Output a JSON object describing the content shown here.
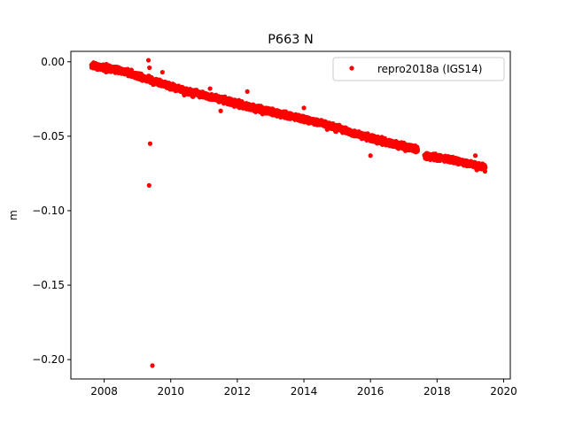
{
  "chart_data": {
    "type": "scatter",
    "title": "P663 N",
    "xlabel": "",
    "ylabel": "m",
    "xlim": [
      2007.0,
      2020.2
    ],
    "ylim": [
      -0.213,
      0.007
    ],
    "x_ticks": [
      2008,
      2010,
      2012,
      2014,
      2016,
      2018,
      2020
    ],
    "x_tick_labels": [
      "2008",
      "2010",
      "2012",
      "2014",
      "2016",
      "2018",
      "2020"
    ],
    "y_ticks": [
      0.0,
      -0.05,
      -0.1,
      -0.15,
      -0.2
    ],
    "y_tick_labels": [
      "0.00",
      "−0.05",
      "−0.10",
      "−0.15",
      "−0.20"
    ],
    "grid": false,
    "legend": "top-right",
    "series": [
      {
        "name": "repro2018a (IGS14)",
        "color": "#ff0000",
        "marker": "circle",
        "x_range": [
          2007.62,
          2019.45
        ],
        "gap": [
          2017.42,
          2017.62
        ],
        "trend": [
          [
            2007.62,
            -0.0025
          ],
          [
            2008.5,
            -0.006
          ],
          [
            2009.5,
            -0.013
          ],
          [
            2010.5,
            -0.02
          ],
          [
            2011.5,
            -0.025
          ],
          [
            2012.5,
            -0.031
          ],
          [
            2013.5,
            -0.036
          ],
          [
            2014.5,
            -0.041
          ],
          [
            2015.5,
            -0.048
          ],
          [
            2016.5,
            -0.054
          ],
          [
            2017.42,
            -0.059
          ],
          [
            2017.62,
            -0.063
          ],
          [
            2018.5,
            -0.066
          ],
          [
            2019.45,
            -0.071
          ]
        ],
        "scatter_sd": 0.0016,
        "outliers": [
          [
            2009.33,
            0.001
          ],
          [
            2009.36,
            -0.004
          ],
          [
            2009.38,
            -0.055
          ],
          [
            2009.35,
            -0.083
          ],
          [
            2009.45,
            -0.204
          ],
          [
            2009.75,
            -0.007
          ],
          [
            2011.18,
            -0.018
          ],
          [
            2012.3,
            -0.02
          ],
          [
            2016.0,
            -0.063
          ],
          [
            2011.5,
            -0.033
          ],
          [
            2014.0,
            -0.031
          ],
          [
            2017.1,
            -0.059
          ],
          [
            2019.15,
            -0.063
          ]
        ]
      }
    ]
  }
}
